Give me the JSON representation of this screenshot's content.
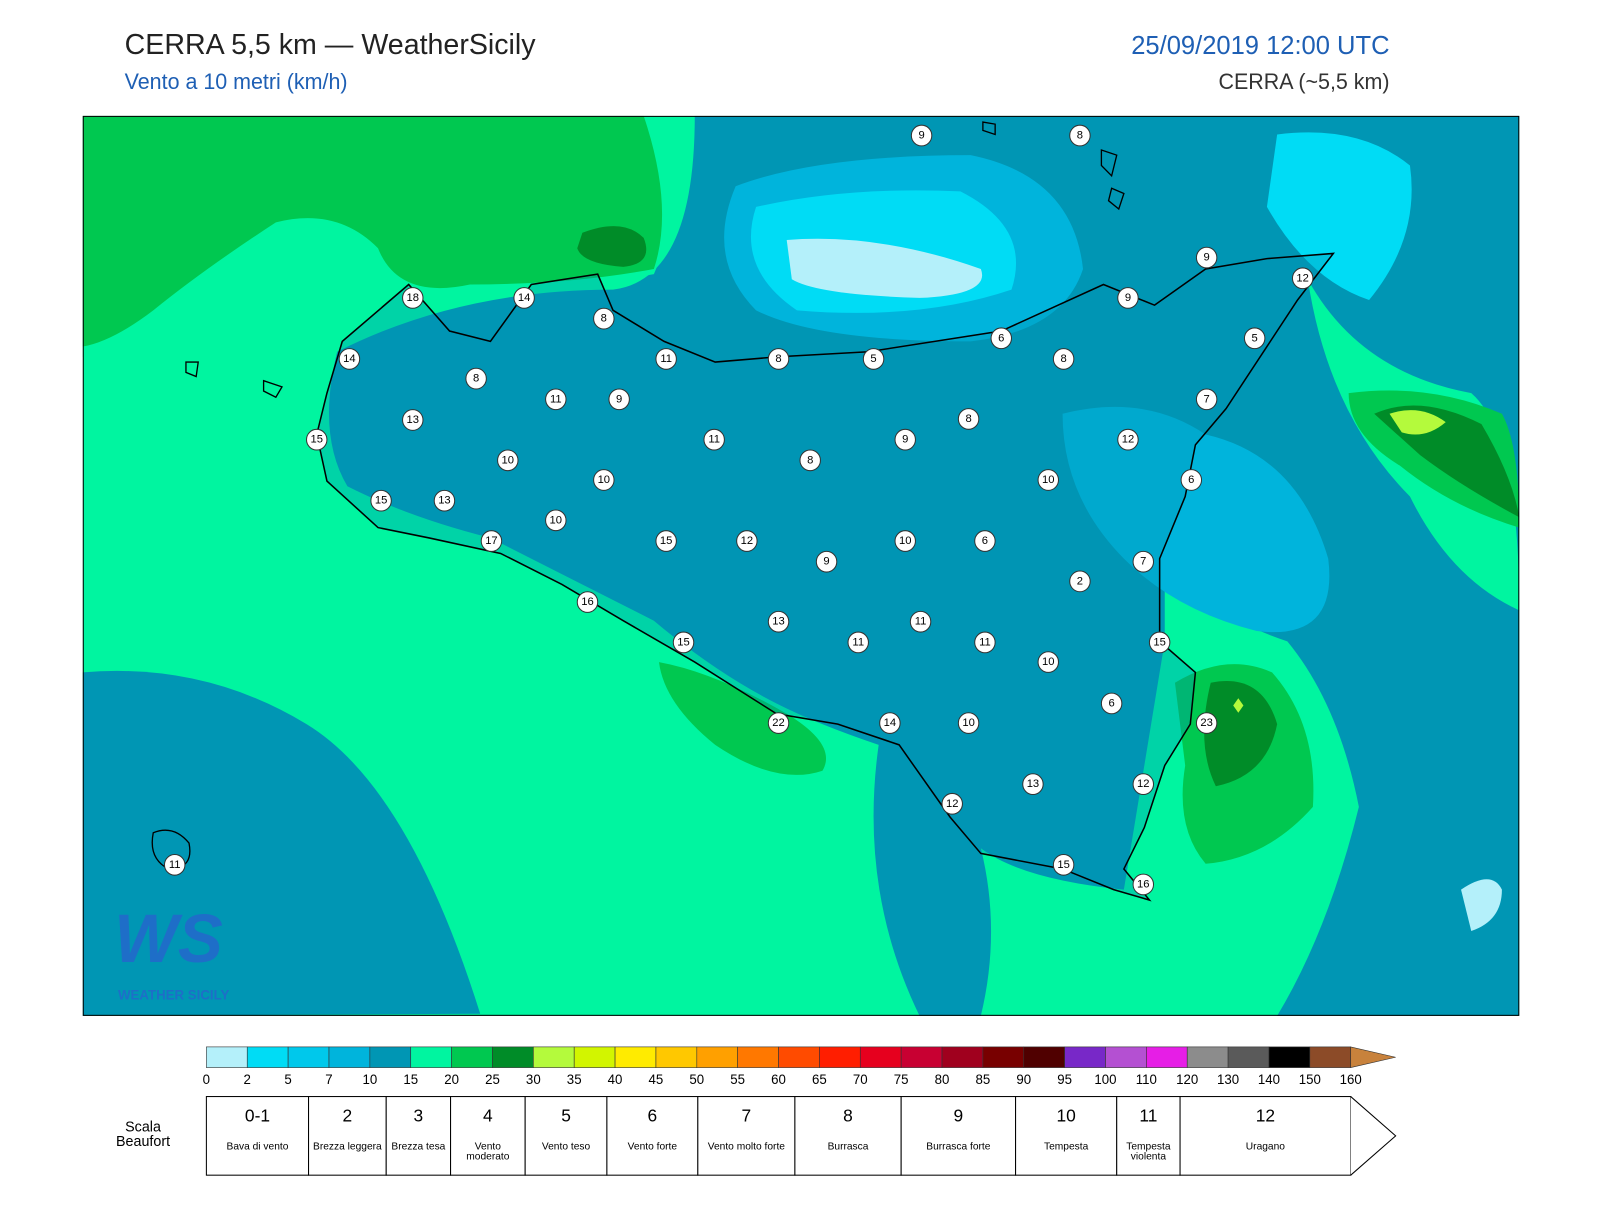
{
  "header": {
    "title": "CERRA 5,5 km — WeatherSicily",
    "subtitle": "Vento a 10 metri (km/h)",
    "date": "25/09/2019 12:00 UTC",
    "model": "CERRA (~5,5 km)"
  },
  "logo": {
    "mark": "WS",
    "text": "WEATHER SICILY"
  },
  "stations": [
    9,
    8,
    18,
    14,
    8,
    14,
    11,
    8,
    5,
    6,
    9,
    9,
    12,
    5,
    8,
    8,
    11,
    9,
    13,
    7,
    8,
    15,
    11,
    8,
    9,
    12,
    10,
    10,
    10,
    6,
    15,
    13,
    10,
    17,
    15,
    12,
    10,
    6,
    9,
    7,
    2,
    16,
    13,
    11,
    15,
    11,
    11,
    15,
    10,
    6,
    22,
    14,
    10,
    23,
    13,
    12,
    12,
    11,
    15,
    16
  ],
  "colorbar": {
    "ticks": [
      0,
      2,
      5,
      7,
      10,
      15,
      20,
      25,
      30,
      35,
      40,
      45,
      50,
      55,
      60,
      65,
      70,
      75,
      80,
      85,
      90,
      95,
      100,
      110,
      120,
      130,
      140,
      150,
      160
    ],
    "colors": [
      "#b4f0fa",
      "#00dcf5",
      "#00c8eb",
      "#00b4dc",
      "#0096b4",
      "#00f5a0",
      "#00c850",
      "#008c28",
      "#b4fa3c",
      "#d2f500",
      "#ffeb00",
      "#ffc800",
      "#ffa000",
      "#ff7800",
      "#ff4b00",
      "#ff1e00",
      "#e6001e",
      "#c80032",
      "#a0001e",
      "#780000",
      "#500000",
      "#7828c8",
      "#b450d2",
      "#e61ee6",
      "#8c8c8c",
      "#5a5a5a",
      "#000000",
      "#8c4b28",
      "#c8823c"
    ]
  },
  "beaufort": {
    "label": "Scala Beaufort",
    "forces": [
      {
        "force": "0-1",
        "desc": "Bava di vento"
      },
      {
        "force": "2",
        "desc": "Brezza leggera"
      },
      {
        "force": "3",
        "desc": "Brezza tesa"
      },
      {
        "force": "4",
        "desc": "Vento moderato"
      },
      {
        "force": "5",
        "desc": "Vento teso"
      },
      {
        "force": "6",
        "desc": "Vento forte"
      },
      {
        "force": "7",
        "desc": "Vento molto forte"
      },
      {
        "force": "8",
        "desc": "Burrasca"
      },
      {
        "force": "9",
        "desc": "Burrasca forte"
      },
      {
        "force": "10",
        "desc": "Tempesta"
      },
      {
        "force": "11",
        "desc": "Tempesta violenta"
      },
      {
        "force": "12",
        "desc": "Uragano"
      }
    ]
  }
}
